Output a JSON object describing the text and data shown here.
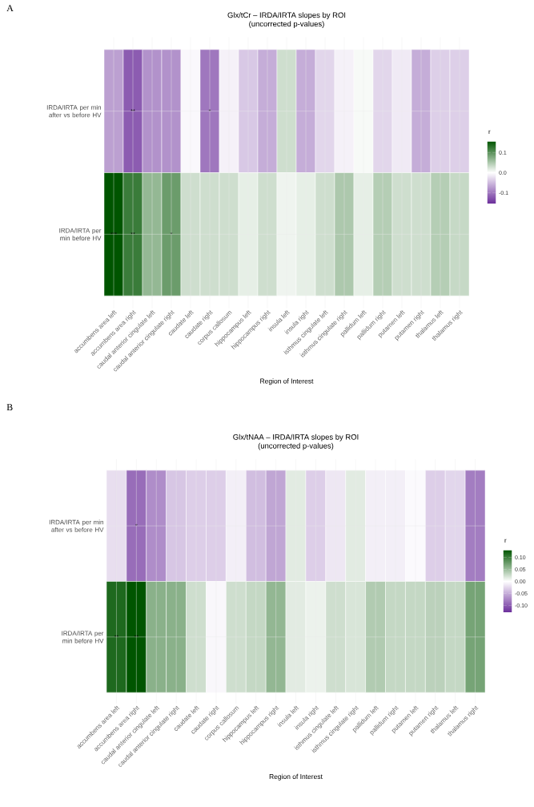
{
  "chart_data": [
    {
      "type": "heatmap",
      "title": "Glx/tCr – IRDA/IRTA slopes by ROI",
      "subtitle": "(uncorrected p-values)",
      "xlabel": "Region of Interest",
      "clabel": "r",
      "annotations": [
        "A"
      ],
      "grid": true,
      "categories": [
        "accumbens area left",
        "accumbens area right",
        "caudal anterior cingulate left",
        "caudal anterior cingulate right",
        "caudate left",
        "caudate right",
        "corpus callosum",
        "hippocampus left",
        "hippocampus right",
        "insula left",
        "insula right",
        "isthmus cingulate left",
        "isthmus cingulate right",
        "pallidum left",
        "pallidum right",
        "putamen left",
        "putamen right",
        "thalamus left",
        "thalamus right"
      ],
      "y_categories": [
        "IRDA/IRTA per min after vs before HV",
        "IRDA/IRTA per min before HV"
      ],
      "cells": [
        [
          -0.07,
          -0.12,
          -0.08,
          -0.08,
          -0.005,
          -0.1,
          -0.01,
          -0.04,
          -0.06,
          0.03,
          -0.06,
          -0.03,
          -0.01,
          0.005,
          -0.03,
          -0.015,
          -0.06,
          -0.035,
          -0.035
        ],
        [
          0.155,
          0.12,
          0.065,
          0.09,
          0.03,
          0.03,
          0.03,
          0.015,
          0.03,
          0.01,
          0.015,
          0.03,
          0.05,
          0.015,
          0.045,
          0.03,
          0.03,
          0.045,
          0.035
        ]
      ],
      "cell_labels": [
        [
          null,
          "**",
          null,
          null,
          null,
          "*",
          null,
          null,
          null,
          null,
          null,
          null,
          null,
          null,
          null,
          null,
          null,
          null,
          null
        ],
        [
          "***",
          "**",
          null,
          "*",
          null,
          null,
          null,
          null,
          null,
          null,
          null,
          null,
          null,
          null,
          null,
          null,
          null,
          null,
          null
        ]
      ],
      "clim": [
        -0.155,
        0.155
      ],
      "cticks": [
        -0.1,
        {
          "value": 0,
          "label": "0.0"
        },
        0.1
      ]
    },
    {
      "type": "heatmap",
      "title": "Glx/tNAA – IRDA/IRTA slopes by ROI",
      "subtitle": "(uncorrected p-values)",
      "xlabel": "Region of Interest",
      "clabel": "r",
      "annotations": [
        "B"
      ],
      "grid": true,
      "categories": [
        "accumbens area left",
        "accumbens area right",
        "caudal anterior cingulate left",
        "caudal anterior cingulate right",
        "caudate left",
        "caudate right",
        "corpus callosum",
        "hippocampus left",
        "hippocampus right",
        "insula left",
        "insula right",
        "isthmus cingulate left",
        "isthmus cingulate right",
        "pallidum left",
        "pallidum right",
        "putamen left",
        "putamen right",
        "thalamus left",
        "thalamus right"
      ],
      "y_categories": [
        "IRDA/IRTA per min after vs before HV",
        "IRDA/IRTA per min before HV"
      ],
      "cells": [
        [
          -0.02,
          -0.09,
          -0.07,
          -0.035,
          -0.03,
          -0.03,
          -0.01,
          -0.04,
          -0.055,
          0.015,
          -0.03,
          -0.015,
          0.015,
          -0.01,
          -0.01,
          -0.003,
          -0.03,
          -0.025,
          -0.08
        ],
        [
          0.115,
          0.13,
          0.06,
          0.06,
          0.025,
          -0.005,
          0.025,
          0.03,
          0.055,
          0.015,
          0.01,
          0.025,
          0.02,
          0.04,
          0.03,
          0.03,
          0.035,
          0.03,
          0.07
        ]
      ],
      "cell_labels": [
        [
          null,
          "*",
          null,
          null,
          null,
          null,
          null,
          null,
          null,
          null,
          null,
          null,
          null,
          null,
          null,
          null,
          null,
          null,
          null
        ],
        [
          "**",
          "**",
          null,
          null,
          null,
          null,
          null,
          null,
          null,
          null,
          null,
          null,
          null,
          null,
          null,
          null,
          null,
          null,
          null
        ]
      ],
      "clim": [
        -0.13,
        0.13
      ],
      "cticks": [
        {
          "value": -0.1,
          "label": "-0.10"
        },
        {
          "value": -0.05,
          "label": "-0.05"
        },
        {
          "value": 0,
          "label": "0.00"
        },
        {
          "value": 0.05,
          "label": "0.05"
        },
        {
          "value": 0.1,
          "label": "0.10"
        }
      ]
    }
  ]
}
